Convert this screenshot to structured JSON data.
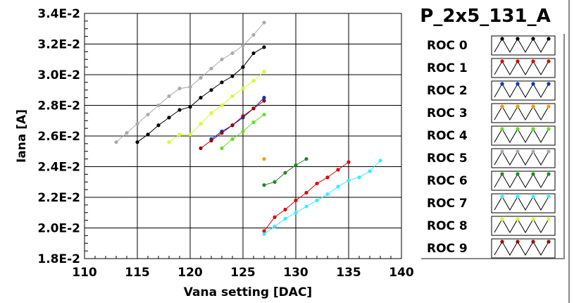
{
  "chart_data": {
    "type": "line",
    "title": "P_2x5_131_A",
    "xlabel": "Vana setting [DAC]",
    "ylabel": "Iana [A]",
    "xlim": [
      110,
      140
    ],
    "ylim": [
      0.018,
      0.034
    ],
    "xticks": [
      110,
      115,
      120,
      125,
      130,
      135,
      140
    ],
    "xtick_labels": [
      "110",
      "115",
      "120",
      "125",
      "130",
      "135",
      "140"
    ],
    "yticks": [
      0.018,
      0.02,
      0.022,
      0.024,
      0.026,
      0.028,
      0.03,
      0.032,
      0.034
    ],
    "ytick_labels": [
      "1.8E-2",
      "2.0E-2",
      "2.2E-2",
      "2.4E-2",
      "2.6E-2",
      "2.8E-2",
      "3.0E-2",
      "3.2E-2",
      "3.4E-2"
    ],
    "grid": true,
    "legend_position": "right",
    "series": [
      {
        "name": "ROC 0",
        "color": "#000000",
        "x": [
          115,
          116,
          117,
          118,
          119,
          120,
          121,
          122,
          123,
          124,
          125,
          126,
          127
        ],
        "y": [
          0.0256,
          0.0261,
          0.0267,
          0.0272,
          0.0277,
          0.0279,
          0.0285,
          0.029,
          0.0295,
          0.0299,
          0.0305,
          0.0314,
          0.0318
        ]
      },
      {
        "name": "ROC 1",
        "color": "#e00000",
        "x": [
          127,
          128,
          129,
          130,
          131,
          132,
          133,
          134,
          135
        ],
        "y": [
          0.0198,
          0.0207,
          0.0212,
          0.0218,
          0.0223,
          0.0229,
          0.0233,
          0.0238,
          0.0243
        ]
      },
      {
        "name": "ROC 2",
        "color": "#0033cc",
        "x": [
          122,
          123,
          124,
          125,
          126,
          127
        ],
        "y": [
          0.0258,
          0.0263,
          0.0267,
          0.0272,
          0.0278,
          0.0285
        ]
      },
      {
        "name": "ROC 3",
        "color": "#ff9900",
        "x": [
          127
        ],
        "y": [
          0.0245
        ]
      },
      {
        "name": "ROC 4",
        "color": "#66dd22",
        "x": [
          123,
          124,
          125,
          126,
          127
        ],
        "y": [
          0.0252,
          0.0258,
          0.0263,
          0.0269,
          0.0274
        ]
      },
      {
        "name": "ROC 5",
        "color": "#aaaaaa",
        "x": [
          113,
          114,
          115,
          116,
          117,
          118,
          119,
          120,
          121,
          122,
          123,
          124,
          125,
          126,
          127
        ],
        "y": [
          0.0256,
          0.0262,
          0.0268,
          0.0274,
          0.028,
          0.0286,
          0.0291,
          0.0292,
          0.0298,
          0.0304,
          0.031,
          0.0314,
          0.0319,
          0.0326,
          0.0334
        ]
      },
      {
        "name": "ROC 6",
        "color": "#228822",
        "x": [
          127,
          128,
          129,
          130,
          131
        ],
        "y": [
          0.0228,
          0.023,
          0.0236,
          0.0241,
          0.0245
        ]
      },
      {
        "name": "ROC 7",
        "color": "#33eeff",
        "x": [
          127,
          128,
          129,
          130,
          131,
          132,
          133,
          134,
          135,
          136,
          137,
          138
        ],
        "y": [
          0.0196,
          0.0201,
          0.0206,
          0.021,
          0.0214,
          0.0218,
          0.0222,
          0.0227,
          0.0231,
          0.0233,
          0.0237,
          0.0244
        ]
      },
      {
        "name": "ROC 8",
        "color": "#ccff33",
        "x": [
          118,
          119,
          120,
          121,
          122,
          123,
          124,
          125,
          126,
          127
        ],
        "y": [
          0.0256,
          0.0261,
          0.0261,
          0.0268,
          0.0275,
          0.028,
          0.0286,
          0.0291,
          0.0296,
          0.0302
        ]
      },
      {
        "name": "ROC 9",
        "color": "#990000",
        "x": [
          121,
          122,
          123,
          124,
          125,
          126,
          127
        ],
        "y": [
          0.0252,
          0.0257,
          0.0262,
          0.0267,
          0.0273,
          0.0278,
          0.0283
        ]
      }
    ]
  }
}
